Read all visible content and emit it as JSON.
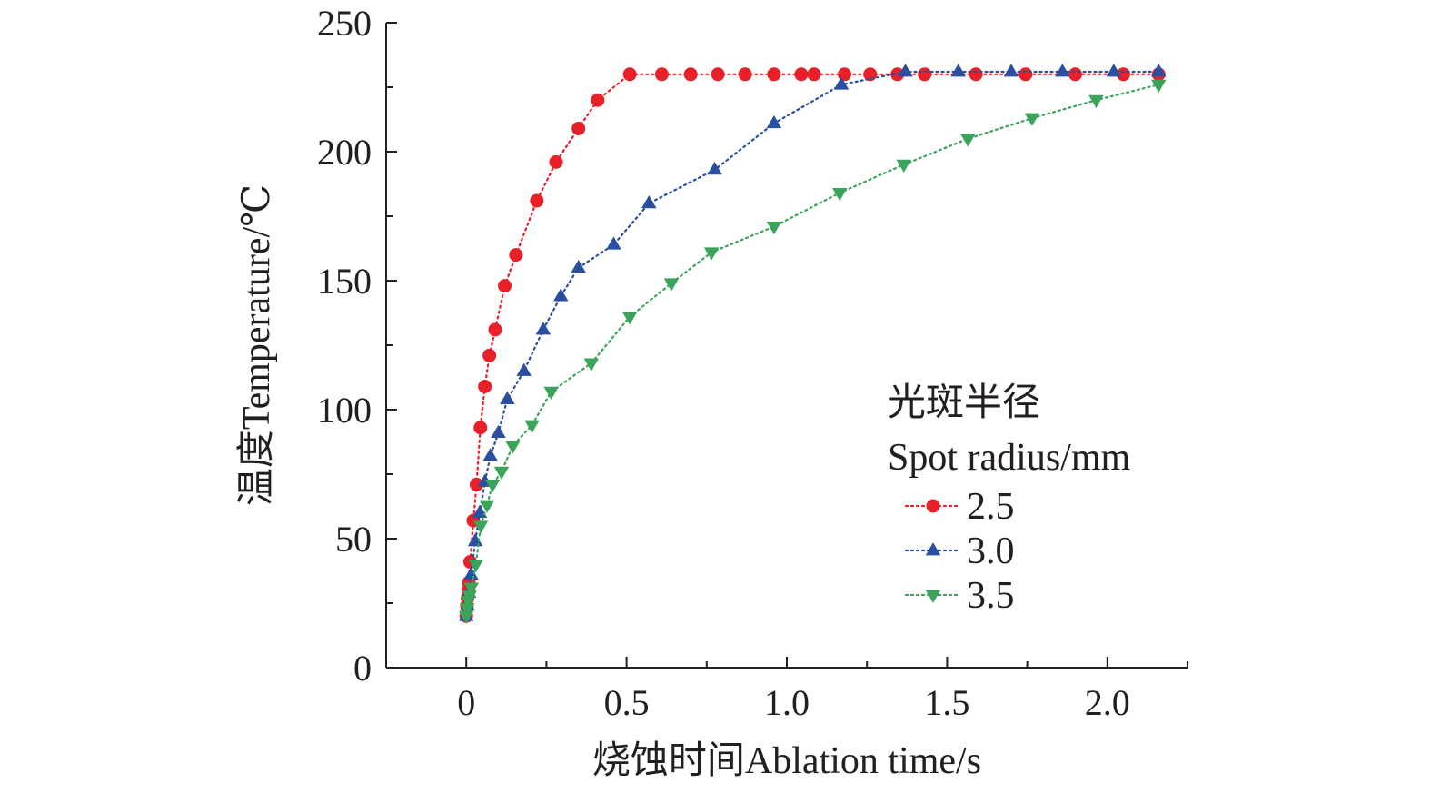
{
  "chart_data": {
    "type": "line",
    "title": "",
    "xlabel": "烧蚀时间Ablation time/s",
    "ylabel": "温度Temperature/℃",
    "xlim": [
      -0.25,
      2.25
    ],
    "ylim": [
      0,
      250
    ],
    "xticks": [
      0,
      0.5,
      1.0,
      1.5,
      2.0
    ],
    "xtick_labels": [
      "0",
      "0.5",
      "1.0",
      "1.5",
      "2.0"
    ],
    "yticks": [
      0,
      50,
      100,
      150,
      200,
      250
    ],
    "ytick_labels": [
      "0",
      "50",
      "100",
      "150",
      "200",
      "250"
    ],
    "grid": false,
    "legend": {
      "title_lines": [
        "光斑半径",
        "Spot radius/mm"
      ],
      "position": "right",
      "entries": [
        "2.5",
        "3.0",
        "3.5"
      ]
    },
    "series": [
      {
        "name": "2.5",
        "color": "#e8202a",
        "marker": "circle",
        "x": [
          0,
          0.002,
          0.004,
          0.006,
          0.008,
          0.012,
          0.022,
          0.032,
          0.044,
          0.058,
          0.072,
          0.09,
          0.12,
          0.155,
          0.22,
          0.28,
          0.35,
          0.41,
          0.51,
          0.61,
          0.7,
          0.785,
          0.87,
          0.96,
          1.045,
          1.085,
          1.18,
          1.26,
          1.345,
          1.43,
          1.59,
          1.745,
          1.9,
          2.05,
          2.16
        ],
        "y": [
          20,
          24,
          27,
          30,
          33,
          41,
          57,
          71,
          93,
          109,
          121,
          131,
          148,
          160,
          181,
          196,
          209,
          220,
          230,
          230,
          230,
          230,
          230,
          230,
          230,
          230,
          230,
          230,
          230,
          230,
          230,
          230,
          230,
          230,
          230
        ]
      },
      {
        "name": "3.0",
        "color": "#2a4fa0",
        "marker": "triangle-up",
        "x": [
          0,
          0.004,
          0.008,
          0.015,
          0.028,
          0.042,
          0.058,
          0.075,
          0.1,
          0.128,
          0.18,
          0.24,
          0.295,
          0.35,
          0.46,
          0.57,
          0.775,
          0.96,
          1.17,
          1.37,
          1.535,
          1.7,
          1.86,
          2.02,
          2.16
        ],
        "y": [
          20,
          24,
          29,
          36,
          49,
          60,
          72,
          82,
          91,
          104,
          115,
          131,
          144,
          155,
          164,
          180,
          193,
          211,
          226,
          231,
          231,
          231,
          231,
          231,
          231
        ]
      },
      {
        "name": "3.5",
        "color": "#3aa55a",
        "marker": "triangle-down",
        "x": [
          0,
          0.003,
          0.006,
          0.01,
          0.016,
          0.03,
          0.045,
          0.065,
          0.082,
          0.11,
          0.145,
          0.205,
          0.265,
          0.39,
          0.51,
          0.64,
          0.765,
          0.96,
          1.165,
          1.365,
          1.565,
          1.765,
          1.965,
          2.16
        ],
        "y": [
          20,
          23,
          26,
          28,
          31,
          40,
          55,
          63,
          71,
          76,
          86,
          94,
          107,
          118,
          136,
          149,
          161,
          171,
          184,
          195,
          205,
          213,
          220,
          226
        ]
      }
    ]
  }
}
